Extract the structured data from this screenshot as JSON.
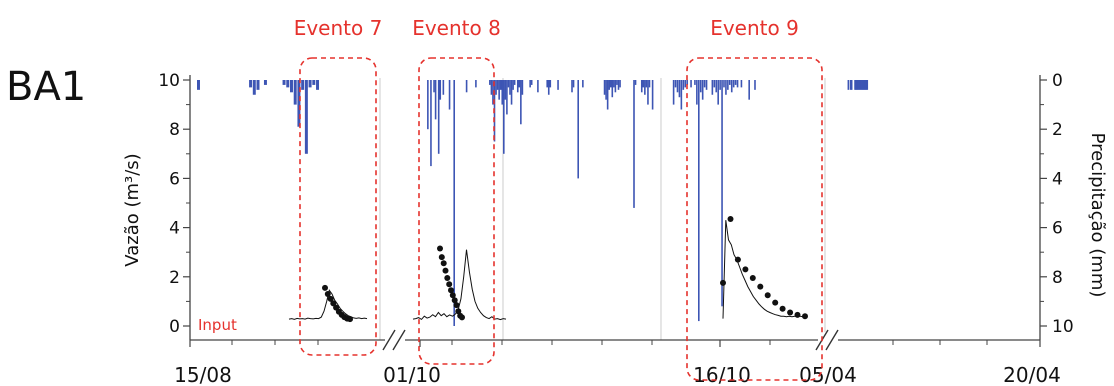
{
  "chart_data": {
    "type": "line",
    "station": "BA1",
    "xlabel": "",
    "ylabel": "Vazão (m³/s)",
    "y2label": "Precipitação (mm)",
    "ylim": [
      0,
      10
    ],
    "y2lim": [
      10,
      0
    ],
    "y2_inverted": true,
    "yticks": [
      0,
      2,
      4,
      6,
      8,
      10
    ],
    "y2ticks": [
      0,
      2,
      4,
      6,
      8,
      10
    ],
    "xtick_labels": [
      "15/08",
      "01/10",
      "16/10",
      "05/04",
      "20/04"
    ],
    "axis_breaks": 2,
    "input_label": "Input",
    "events": [
      "Evento 7",
      "Evento 8",
      "Evento 9"
    ],
    "colors": {
      "flow": "#111111",
      "rain": "#3d55b4",
      "event": "#e5322d",
      "divider": "#d4d4d4"
    },
    "flow_segments": [
      {
        "event": "Evento 7",
        "period": "15/08 – 01/10",
        "line": [
          0.28,
          0.3,
          0.27,
          0.31,
          0.29,
          0.3,
          0.28,
          0.32,
          0.3,
          0.29,
          0.31,
          0.3,
          0.36,
          0.6,
          1.0,
          1.45,
          1.3,
          1.05,
          0.9,
          0.72,
          0.6,
          0.5,
          0.42,
          0.38,
          0.33,
          0.31,
          0.33,
          0.3,
          0.32,
          0.3
        ],
        "points": [
          1.55,
          1.3,
          1.1,
          0.92,
          0.75,
          0.58,
          0.45,
          0.36,
          0.3,
          0.28
        ]
      },
      {
        "event": "Evento 8",
        "period": "01/10 – 16/10",
        "line": [
          0.28,
          0.3,
          0.34,
          0.27,
          0.4,
          0.32,
          0.36,
          0.46,
          0.38,
          0.55,
          0.42,
          0.5,
          0.38,
          0.45,
          0.4,
          0.48,
          0.65,
          1.1,
          2.0,
          3.1,
          2.2,
          1.5,
          1.0,
          0.72,
          0.55,
          0.42,
          0.34,
          0.3,
          0.38,
          0.28,
          0.3,
          0.26,
          0.3,
          0.28
        ],
        "points": [
          3.15,
          2.8,
          2.55,
          2.25,
          1.95,
          1.7,
          1.45,
          1.25,
          1.05,
          0.85,
          0.6,
          0.42,
          0.35
        ]
      },
      {
        "event": "Evento 9",
        "period": "16/10 – 05/04",
        "line": [
          0.3,
          4.3,
          3.5,
          3.3,
          2.9,
          2.7,
          2.4,
          2.1,
          1.85,
          1.6,
          1.4,
          1.2,
          1.05,
          0.9,
          0.78,
          0.68,
          0.6,
          0.55,
          0.5,
          0.46,
          0.43,
          0.4,
          0.4,
          0.38,
          0.4,
          0.38,
          0.4,
          0.37,
          0.4,
          0.38
        ],
        "points": [
          1.75,
          4.35,
          2.7,
          2.3,
          1.95,
          1.6,
          1.25,
          0.95,
          0.7,
          0.55,
          0.45,
          0.4
        ]
      }
    ],
    "precipitation_segments": [
      {
        "period": "15/08 – 01/10",
        "values": [
          0.4,
          0,
          0,
          0,
          0,
          0,
          0,
          0,
          0,
          0,
          0,
          0,
          0,
          0,
          0.3,
          0.6,
          0.4,
          0,
          0.2,
          0,
          0,
          0,
          0,
          0.2,
          0.3,
          0.5,
          1.0,
          1.9,
          0.4,
          3.0,
          0.3,
          0.2,
          0.4,
          0,
          0,
          0,
          0,
          0,
          0,
          0,
          0,
          0,
          0,
          0,
          0,
          0,
          0,
          0,
          0,
          0
        ]
      },
      {
        "period": "01/10 – 16/10",
        "values": [
          0,
          0,
          0,
          0,
          0,
          0,
          0,
          0,
          0,
          0,
          0,
          2.0,
          0,
          3.5,
          0,
          0.5,
          1.6,
          0,
          3.0,
          0.8,
          0,
          0.6,
          0,
          0,
          0,
          1.2,
          0,
          0,
          10.0,
          0,
          0,
          0,
          0,
          0,
          0,
          0,
          0.5,
          0,
          0,
          0,
          0,
          0,
          0.3,
          0,
          0,
          0,
          0,
          0,
          0,
          0,
          0,
          0.2,
          0.6,
          1.0,
          2.5,
          0.6,
          0.4,
          0.8,
          0.4,
          1.0,
          3.0,
          0.8,
          1.4,
          0.3,
          0.6,
          1.0,
          0.4,
          0.2,
          0,
          0.5,
          0.3,
          1.8,
          0.6,
          0,
          0,
          0,
          0,
          0.3,
          0.2,
          0,
          0,
          0,
          0.5,
          0,
          0,
          0,
          0,
          0,
          0.3,
          0.6,
          0.3,
          0,
          0,
          0,
          0,
          0.4,
          0,
          0,
          0,
          0,
          0,
          0,
          0,
          0,
          0.5,
          0.3,
          0,
          0,
          4.0,
          0,
          0,
          0.3,
          0,
          0,
          0,
          0,
          0,
          0,
          0,
          0,
          0,
          0,
          0,
          0,
          0,
          0.6,
          0.8,
          1.2,
          0.4,
          0.3,
          0.7,
          0.3,
          0.5,
          0.2,
          0.4,
          0.3,
          0,
          0,
          0,
          0,
          0,
          0,
          0,
          0,
          5.2,
          0.2,
          0,
          0,
          0,
          0.5,
          0.3,
          0.6,
          0.3,
          1.0,
          0.3,
          0,
          1.2,
          0,
          0,
          0
        ]
      },
      {
        "period": "16/10 – 05/04",
        "values": [
          0,
          0,
          0,
          1.0,
          0.3,
          0.5,
          0.7,
          1.2,
          0.4,
          0.3,
          0.2,
          0,
          0.3,
          0,
          0.2,
          1.0,
          9.8,
          0.5,
          0.8,
          0.3,
          0.4,
          0,
          0,
          0.6,
          0.3,
          0.5,
          1.0,
          0.4,
          9.2,
          0.3,
          0.6,
          0.4,
          0.2,
          0.5,
          0.3,
          0.2,
          0.3,
          0,
          0.3,
          0,
          0,
          0,
          0.8,
          0,
          0,
          0.4,
          0,
          0,
          0,
          0,
          0,
          0,
          0,
          0,
          0,
          0,
          0,
          0,
          0,
          0,
          0,
          0,
          0,
          0,
          0,
          0,
          0,
          0,
          0,
          0,
          0,
          0,
          0,
          0,
          0,
          0,
          0,
          0,
          0,
          0
        ]
      },
      {
        "period": "05/04 – 20/04",
        "values": [
          0,
          0,
          0,
          0,
          0,
          0.4,
          0,
          0.4,
          0.4,
          0,
          0,
          0.4,
          0.4,
          0.4,
          0.4,
          0.4,
          0.4,
          0.4,
          0.4,
          0.4,
          0.4,
          0.4,
          0.4,
          0,
          0,
          0,
          0,
          0,
          0,
          0,
          0,
          0,
          0,
          0,
          0,
          0,
          0,
          0,
          0,
          0,
          0,
          0,
          0,
          0,
          0,
          0,
          0,
          0,
          0,
          0,
          0,
          0,
          0,
          0,
          0,
          0,
          0,
          0,
          0,
          0,
          0,
          0,
          0,
          0,
          0,
          0,
          0,
          0,
          0,
          0,
          0,
          0,
          0,
          0,
          0,
          0,
          0,
          0,
          0,
          0,
          0,
          0,
          0,
          0,
          0,
          0,
          0,
          0,
          0,
          0,
          0,
          0,
          0,
          0,
          0,
          0,
          0,
          0,
          0,
          0,
          0,
          0,
          0,
          0,
          0,
          0,
          0,
          0,
          0,
          0,
          0,
          0,
          0,
          0,
          0,
          0,
          0,
          0,
          0,
          0,
          0,
          0,
          0,
          0,
          0,
          0,
          0,
          0,
          0,
          0,
          0,
          0,
          0,
          0,
          0,
          0,
          0,
          0,
          0,
          0,
          0,
          0,
          0,
          0,
          0,
          0,
          0,
          0,
          0,
          0,
          0,
          0,
          0,
          0,
          0,
          0,
          0,
          0,
          0,
          0,
          0,
          0,
          0,
          0,
          0,
          0,
          0,
          0,
          0,
          0,
          0,
          0,
          0,
          0,
          0,
          0,
          0,
          0
        ]
      }
    ]
  }
}
